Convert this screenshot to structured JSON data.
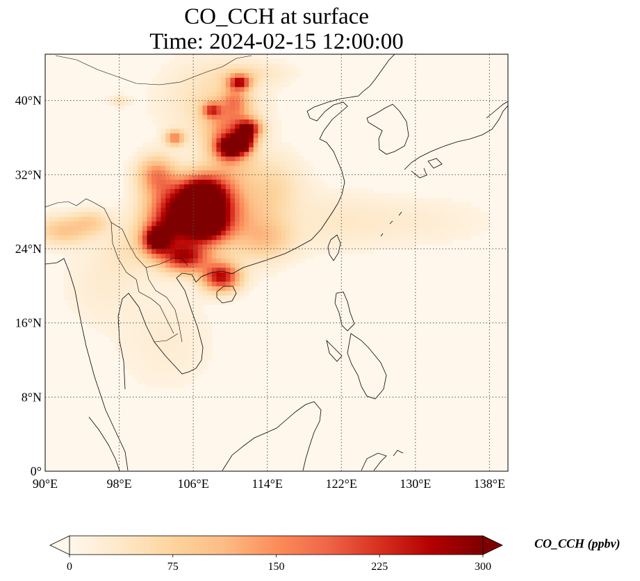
{
  "title": {
    "line1": "CO_CCH at surface",
    "line2": "Time: 2024-02-15 12:00:00"
  },
  "axes": {
    "lon_range": [
      90,
      140
    ],
    "lat_range": [
      0,
      45
    ],
    "x_ticks": [
      {
        "value": 90,
        "label": "90°E"
      },
      {
        "value": 98,
        "label": "98°E"
      },
      {
        "value": 106,
        "label": "106°E"
      },
      {
        "value": 114,
        "label": "114°E"
      },
      {
        "value": 122,
        "label": "122°E"
      },
      {
        "value": 130,
        "label": "130°E"
      },
      {
        "value": 138,
        "label": "138°E"
      }
    ],
    "y_ticks": [
      {
        "value": 0,
        "label": "0°"
      },
      {
        "value": 8,
        "label": "8°N"
      },
      {
        "value": 16,
        "label": "16°N"
      },
      {
        "value": 24,
        "label": "24°N"
      },
      {
        "value": 32,
        "label": "32°N"
      },
      {
        "value": 40,
        "label": "40°N"
      }
    ],
    "gridlines": true
  },
  "colorbar": {
    "label": "CO_CCH (ppbv)",
    "colormap": "OrRd",
    "range": [
      0,
      300
    ],
    "ticks": [
      {
        "value": 0,
        "label": "0"
      },
      {
        "value": 75,
        "label": "75"
      },
      {
        "value": 150,
        "label": "150"
      },
      {
        "value": 225,
        "label": "225"
      },
      {
        "value": 300,
        "label": "300"
      }
    ],
    "extend": "both",
    "colors": [
      "#fff7ec",
      "#fee8c8",
      "#fdd49e",
      "#fdbb84",
      "#fc8d59",
      "#ef6548",
      "#d7301f",
      "#b30000",
      "#7f0000"
    ]
  },
  "field": {
    "background_value": 5,
    "plumes": [
      {
        "lon": 107,
        "lat": 30,
        "rlon": 2.5,
        "rlat": 2.0,
        "value": 300
      },
      {
        "lon": 104,
        "lat": 28,
        "rlon": 3.0,
        "rlat": 3.0,
        "value": 220
      },
      {
        "lon": 102,
        "lat": 25,
        "rlon": 1.5,
        "rlat": 1.5,
        "value": 260
      },
      {
        "lon": 105,
        "lat": 23,
        "rlon": 2.5,
        "rlat": 1.5,
        "value": 200
      },
      {
        "lon": 109,
        "lat": 21,
        "rlon": 2.0,
        "rlat": 1.5,
        "value": 250
      },
      {
        "lon": 106,
        "lat": 26,
        "rlon": 4.0,
        "rlat": 3.0,
        "value": 150
      },
      {
        "lon": 109,
        "lat": 28,
        "rlon": 2.5,
        "rlat": 2.5,
        "value": 140
      },
      {
        "lon": 102,
        "lat": 32,
        "rlon": 2.0,
        "rlat": 2.0,
        "value": 140
      },
      {
        "lon": 107.5,
        "lat": 26.5,
        "rlon": 2.0,
        "rlat": 1.5,
        "value": 180
      },
      {
        "lon": 110,
        "lat": 35,
        "rlon": 1.5,
        "rlat": 1.2,
        "value": 270
      },
      {
        "lon": 112,
        "lat": 37,
        "rlon": 1.3,
        "rlat": 1.0,
        "value": 220
      },
      {
        "lon": 111.5,
        "lat": 35.5,
        "rlon": 1.0,
        "rlat": 1.0,
        "value": 230
      },
      {
        "lon": 110,
        "lat": 37,
        "rlon": 2.5,
        "rlat": 2.5,
        "value": 110
      },
      {
        "lon": 111,
        "lat": 42,
        "rlon": 1.2,
        "rlat": 0.8,
        "value": 220
      },
      {
        "lon": 110.5,
        "lat": 40,
        "rlon": 1.5,
        "rlat": 1.5,
        "value": 100
      },
      {
        "lon": 108,
        "lat": 39,
        "rlon": 1.0,
        "rlat": 0.8,
        "value": 160
      },
      {
        "lon": 104,
        "lat": 36,
        "rlon": 1.0,
        "rlat": 0.8,
        "value": 150
      },
      {
        "lon": 110,
        "lat": 33,
        "rlon": 3.0,
        "rlat": 4.0,
        "value": 80
      },
      {
        "lon": 113,
        "lat": 27,
        "rlon": 3.0,
        "rlat": 4.0,
        "value": 60
      },
      {
        "lon": 115,
        "lat": 31,
        "rlon": 3.0,
        "rlat": 3.0,
        "value": 45
      },
      {
        "lon": 108,
        "lat": 40,
        "rlon": 5.0,
        "rlat": 4.0,
        "value": 50
      },
      {
        "lon": 114,
        "lat": 25,
        "rlon": 3.0,
        "rlat": 2.0,
        "value": 55
      },
      {
        "lon": 92,
        "lat": 26,
        "rlon": 3.0,
        "rlat": 1.5,
        "value": 90
      },
      {
        "lon": 95,
        "lat": 27,
        "rlon": 2.0,
        "rlat": 1.2,
        "value": 60
      },
      {
        "lon": 99,
        "lat": 24,
        "rlon": 3.0,
        "rlat": 3.0,
        "value": 35
      },
      {
        "lon": 96,
        "lat": 20,
        "rlon": 4.0,
        "rlat": 4.0,
        "value": 20
      },
      {
        "lon": 103,
        "lat": 14,
        "rlon": 5.0,
        "rlat": 5.0,
        "value": 20
      },
      {
        "lon": 121,
        "lat": 27,
        "rlon": 6.0,
        "rlat": 3.0,
        "value": 25
      },
      {
        "lon": 130,
        "lat": 27,
        "rlon": 8.0,
        "rlat": 2.5,
        "value": 20
      },
      {
        "lon": 98,
        "lat": 40,
        "rlon": 1.0,
        "rlat": 0.6,
        "value": 40
      },
      {
        "lon": 112,
        "lat": 43,
        "rlon": 4.0,
        "rlat": 1.2,
        "value": 40
      }
    ]
  }
}
